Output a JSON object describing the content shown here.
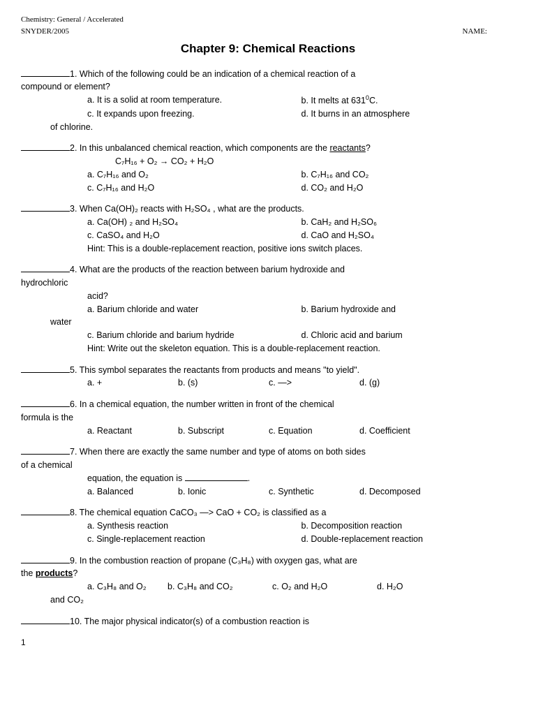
{
  "header": {
    "course": "Chemistry: General / Accelerated",
    "teacher": "SNYDER/2005",
    "name_label": "NAME:"
  },
  "title": "Chapter 9: Chemical Reactions",
  "q1": {
    "text1": "1. Which of the following could be an indication of a chemical reaction of a",
    "text2": "compound or element?",
    "a": "a. It is a solid at room temperature.",
    "b_pre": "b. It melts at 631",
    "b_post": "C.",
    "c": "c. It expands upon freezing.",
    "d": "d. It burns in an atmosphere",
    "tail": "of chlorine."
  },
  "q2": {
    "text_pre": "2. In this unbalanced chemical reaction, which components are the ",
    "text_u": "reactants",
    "eq": "C₇H₁₆  +  O₂   →    CO₂  +  H₂O",
    "a": "a. C₇H₁₆  and   O₂",
    "b": "b. C₇H₁₆  and  CO₂",
    "c": "c. C₇H₁₆  and   H₂O",
    "d": "d. CO₂    and   H₂O"
  },
  "q3": {
    "text": "3. When Ca(OH)₂  reacts with  H₂SO₄ , what are the products.",
    "a": "a. Ca(OH) ₂ and H₂SO₄",
    "b": "b. CaH₂ and H₂SO₆",
    "c": "c. CaSO₄ and H₂O",
    "d": "d. CaO and H₂SO₄",
    "hint": "Hint: This is a double-replacement reaction, positive ions switch places."
  },
  "q4": {
    "text1": "4. What are the products of the reaction between barium hydroxide and",
    "text2": "hydrochloric",
    "text3": "acid?",
    "a": "a. Barium chloride and water",
    "b": "b. Barium hydroxide and",
    "btail": "water",
    "c": "c. Barium chloride and barium hydride",
    "d": "d. Chloric acid and barium",
    "hint": "Hint: Write out the skeleton equation. This is a double-replacement reaction."
  },
  "q5": {
    "text": "5. This symbol separates the reactants from products and means \"to yield\".",
    "a": "a. +",
    "b": "b. (s)",
    "c": "c. —>",
    "d": "d. (g)"
  },
  "q6": {
    "text1": "6. In a chemical equation, the number written in front of the chemical",
    "text2": "formula is the",
    "a": "a. Reactant",
    "b": "b. Subscript",
    "c": "c. Equation",
    "d": "d. Coefficient"
  },
  "q7": {
    "text1": "7. When there are exactly the same number and type of atoms on both sides",
    "text2": "of a chemical",
    "text3": "equation, the equation is ",
    "a": "a. Balanced",
    "b": "b. Ionic",
    "c": "c. Synthetic",
    "d": "d. Decomposed"
  },
  "q8": {
    "text": "8. The chemical equation  CaCO₃ —> CaO + CO₂    is classified as a",
    "a": "a. Synthesis reaction",
    "b": "b. Decomposition reaction",
    "c": "c. Single-replacement reaction",
    "d": "d. Double-replacement reaction"
  },
  "q9": {
    "text1": "9. In the combustion reaction of propane (C₃H₈) with oxygen gas, what are",
    "text2a": "the ",
    "text2b": "products",
    "a": "a. C₃H₈  and    O₂",
    "b": "b. C₃H₈  and    CO₂",
    "c": "c. O₂      and   H₂O",
    "d": "d. H₂O",
    "tail": "and   CO₂"
  },
  "q10": {
    "text": "10. The major physical indicator(s) of a combustion reaction is"
  },
  "pagenum": "1"
}
